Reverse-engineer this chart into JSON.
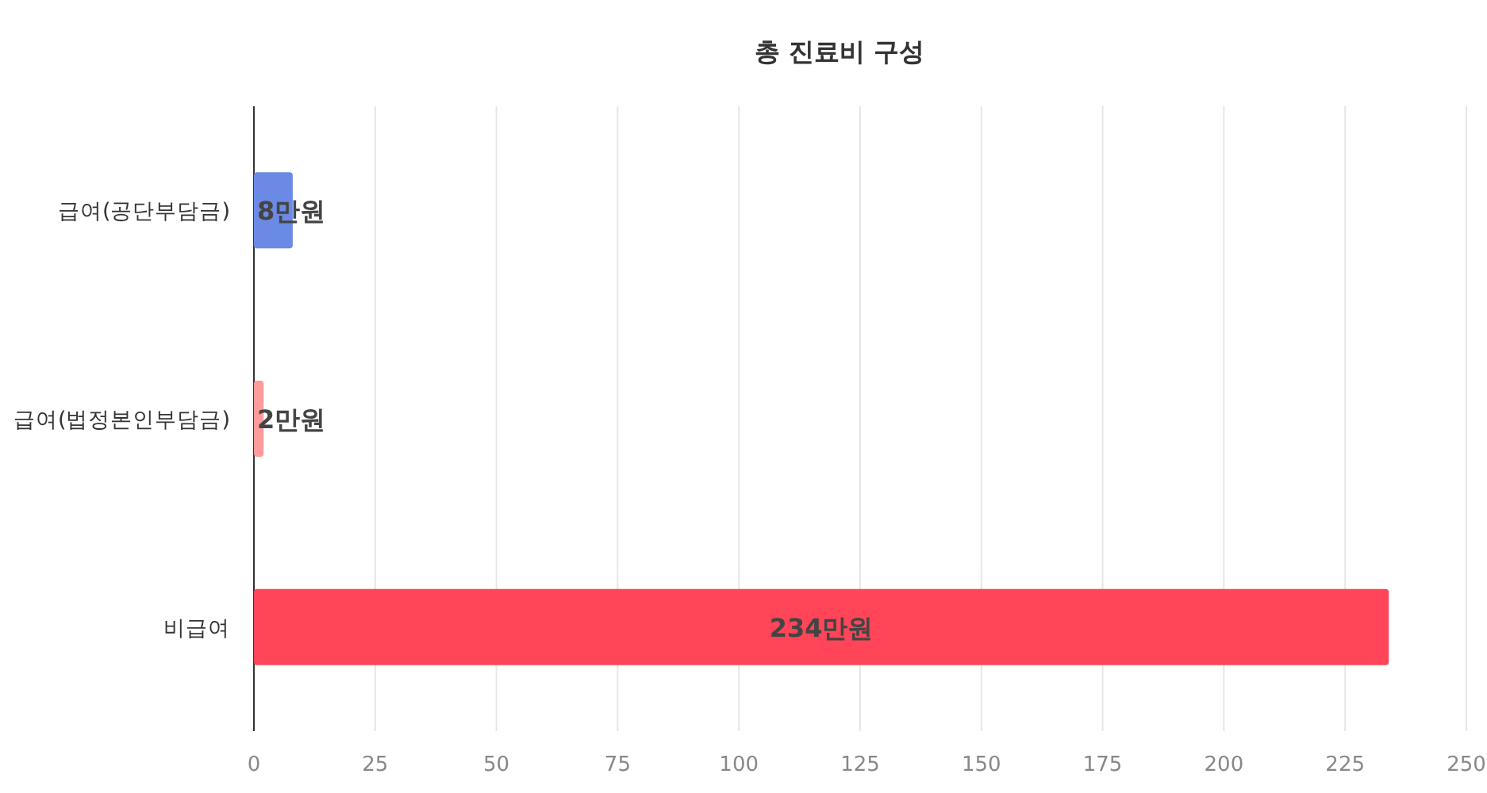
{
  "chart_data": {
    "type": "bar",
    "orientation": "horizontal",
    "title": "총 진료비 구성",
    "categories": [
      "급여(공단부담금)",
      "급여(법정본인부담금)",
      "비급여"
    ],
    "values": [
      8,
      2,
      234
    ],
    "colors": [
      "#6b8ae6",
      "#ff9b9b",
      "#ff4557"
    ],
    "value_labels": [
      "8만원",
      "2만원",
      "234만원"
    ],
    "xlim": [
      0,
      250
    ],
    "xticks": [
      0,
      25,
      50,
      75,
      100,
      125,
      150,
      175,
      200,
      225,
      250
    ],
    "grid": "x"
  }
}
